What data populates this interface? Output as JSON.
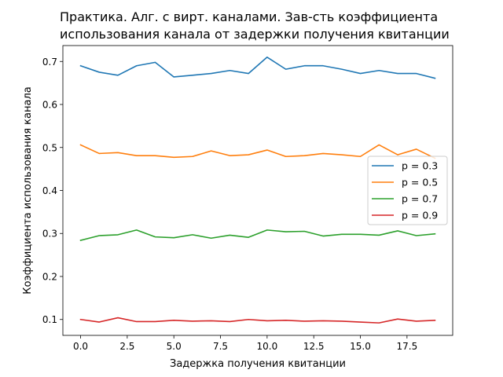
{
  "chart_data": {
    "type": "line",
    "title": "Практика. Алг. с вирт. каналами. Зав-сть коэффициента\nиспользования канала от задержки получения квитанции",
    "xlabel": "Задержка получения квитанции",
    "ylabel": "Коэффициента использования канала",
    "x": [
      0,
      1,
      2,
      3,
      4,
      5,
      6,
      7,
      8,
      9,
      10,
      11,
      12,
      13,
      14,
      15,
      16,
      17,
      18,
      19
    ],
    "xlim": [
      -0.95,
      19.95
    ],
    "ylim": [
      0.063,
      0.737
    ],
    "xticks": [
      0.0,
      2.5,
      5.0,
      7.5,
      10.0,
      12.5,
      15.0,
      17.5
    ],
    "xtick_labels": [
      "0.0",
      "2.5",
      "5.0",
      "7.5",
      "10.0",
      "12.5",
      "15.0",
      "17.5"
    ],
    "yticks": [
      0.1,
      0.2,
      0.3,
      0.4,
      0.5,
      0.6,
      0.7
    ],
    "ytick_labels": [
      "0.1",
      "0.2",
      "0.3",
      "0.4",
      "0.5",
      "0.6",
      "0.7"
    ],
    "grid": false,
    "legend_position": "center-right",
    "series": [
      {
        "name": "p = 0.3",
        "color": "#1f77b4",
        "values": [
          0.69,
          0.675,
          0.668,
          0.69,
          0.698,
          0.664,
          0.668,
          0.672,
          0.679,
          0.672,
          0.71,
          0.682,
          0.69,
          0.69,
          0.682,
          0.672,
          0.679,
          0.672,
          0.672,
          0.661
        ]
      },
      {
        "name": "p = 0.5",
        "color": "#ff7f0e",
        "values": [
          0.506,
          0.486,
          0.488,
          0.481,
          0.481,
          0.477,
          0.479,
          0.492,
          0.481,
          0.483,
          0.494,
          0.479,
          0.481,
          0.486,
          0.483,
          0.479,
          0.506,
          0.483,
          0.496,
          0.475
        ]
      },
      {
        "name": "p = 0.7",
        "color": "#2ca02c",
        "values": [
          0.284,
          0.295,
          0.297,
          0.308,
          0.292,
          0.29,
          0.297,
          0.289,
          0.296,
          0.291,
          0.308,
          0.304,
          0.305,
          0.294,
          0.298,
          0.298,
          0.296,
          0.306,
          0.295,
          0.299
        ]
      },
      {
        "name": "p = 0.9",
        "color": "#d62728",
        "values": [
          0.1,
          0.094,
          0.104,
          0.095,
          0.095,
          0.098,
          0.096,
          0.097,
          0.095,
          0.1,
          0.097,
          0.098,
          0.096,
          0.097,
          0.096,
          0.094,
          0.092,
          0.101,
          0.096,
          0.098
        ]
      }
    ]
  }
}
